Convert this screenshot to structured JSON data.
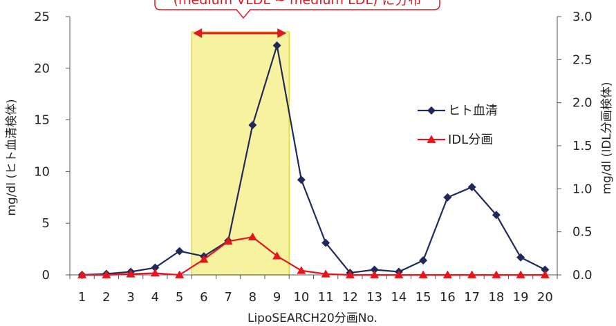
{
  "chart_data": {
    "type": "line",
    "xlabel": "LipoSEARCH20分画No.",
    "ylabel_left": "mg/dl (ヒト血清検体)",
    "ylabel_right": "mg/dl (IDL分画検体)",
    "categories": [
      "1",
      "2",
      "3",
      "4",
      "5",
      "6",
      "7",
      "8",
      "9",
      "10",
      "11",
      "12",
      "13",
      "14",
      "15",
      "16",
      "17",
      "18",
      "19",
      "20"
    ],
    "y_left": {
      "min": 0,
      "max": 25,
      "ticks": [
        "0",
        "5",
        "10",
        "15",
        "20",
        "25"
      ]
    },
    "y_right": {
      "min": 0,
      "max": 3.0,
      "ticks": [
        "0.0",
        "0.5",
        "1.0",
        "1.5",
        "2.0",
        "2.5",
        "3.0"
      ]
    },
    "series": [
      {
        "name": "ヒト血清",
        "axis": "left",
        "color": "#1f2a5a",
        "marker": "diamond",
        "values": [
          0.0,
          0.1,
          0.3,
          0.7,
          2.3,
          1.8,
          3.3,
          14.5,
          22.2,
          9.2,
          3.1,
          0.2,
          0.5,
          0.3,
          1.4,
          7.5,
          8.5,
          5.8,
          1.7,
          0.5
        ]
      },
      {
        "name": "IDL分画",
        "axis": "right",
        "color": "#e8141c",
        "marker": "triangle",
        "values": [
          0.0,
          0.0,
          0.01,
          0.02,
          0.0,
          0.18,
          0.39,
          0.44,
          0.22,
          0.05,
          0.01,
          0.0,
          0.0,
          0.0,
          0.0,
          0.0,
          0.0,
          0.0,
          0.0,
          0.0
        ]
      }
    ],
    "highlight": {
      "from_category": "6",
      "to_category": "9",
      "fill": "#f7f2a0",
      "stroke": "#e2dc3a"
    },
    "callout": {
      "text": "(medium VLDL ~ medium LDL) に分布",
      "color": "#e0181f"
    },
    "legend_position": "right-center",
    "grid": false
  }
}
